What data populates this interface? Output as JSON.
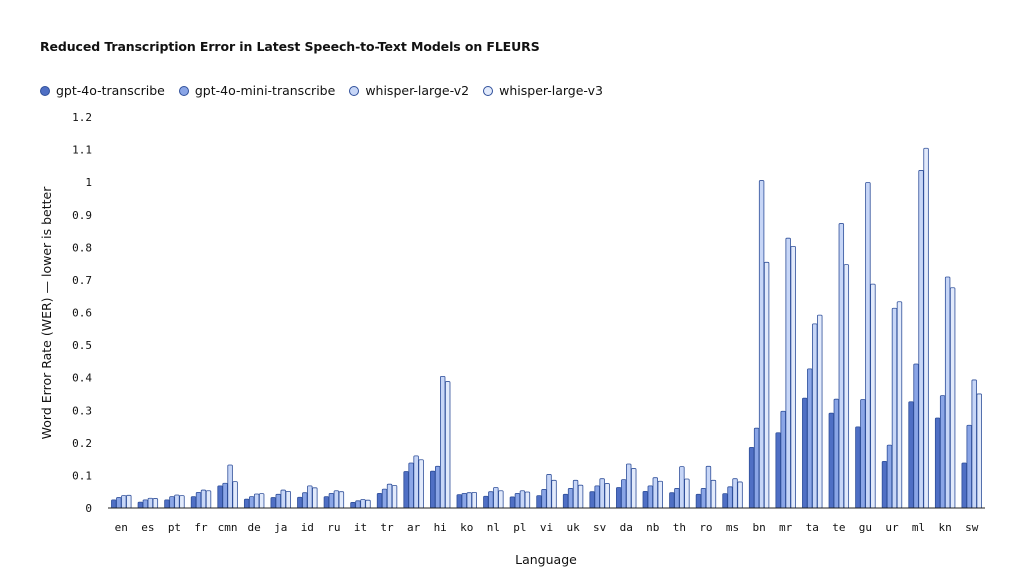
{
  "chart_data": {
    "type": "bar",
    "title": "Reduced Transcription Error in Latest Speech-to-Text Models on FLEURS",
    "xlabel": "Language",
    "ylabel": "Word Error Rate (WER) — lower is better",
    "ylim": [
      0,
      1.2
    ],
    "yticks": [
      "0",
      "0.1",
      "0.2",
      "0.3",
      "0.4",
      "0.5",
      "0.6",
      "0.7",
      "0.8",
      "0.9",
      "1",
      "1.1",
      "1.2"
    ],
    "legend_position": "top-left",
    "grid": false,
    "categories": [
      "en",
      "es",
      "pt",
      "fr",
      "cmn",
      "de",
      "ja",
      "id",
      "ru",
      "it",
      "tr",
      "ar",
      "hi",
      "ko",
      "nl",
      "pl",
      "vi",
      "uk",
      "sv",
      "da",
      "nb",
      "th",
      "ro",
      "ms",
      "bn",
      "mr",
      "ta",
      "te",
      "gu",
      "ur",
      "ml",
      "kn",
      "sw"
    ],
    "series": [
      {
        "name": "gpt-4o-transcribe",
        "color": "#4f6fc4",
        "values": [
          0.025,
          0.018,
          0.025,
          0.035,
          0.068,
          0.027,
          0.032,
          0.033,
          0.035,
          0.017,
          0.045,
          0.112,
          0.113,
          0.041,
          0.036,
          0.034,
          0.038,
          0.042,
          0.05,
          0.063,
          0.051,
          0.047,
          0.042,
          0.044,
          0.186,
          0.231,
          0.337,
          0.291,
          0.249,
          0.143,
          0.326,
          0.276,
          0.138
        ]
      },
      {
        "name": "gpt-4o-mini-transcribe",
        "color": "#8aa5e6",
        "values": [
          0.032,
          0.025,
          0.035,
          0.048,
          0.076,
          0.035,
          0.042,
          0.047,
          0.045,
          0.022,
          0.058,
          0.138,
          0.128,
          0.045,
          0.05,
          0.045,
          0.057,
          0.06,
          0.068,
          0.087,
          0.068,
          0.06,
          0.06,
          0.065,
          0.245,
          0.297,
          0.427,
          0.334,
          0.333,
          0.193,
          0.442,
          0.345,
          0.254
        ]
      },
      {
        "name": "whisper-large-v2",
        "color": "#c7d6f7",
        "values": [
          0.038,
          0.03,
          0.04,
          0.055,
          0.132,
          0.043,
          0.055,
          0.068,
          0.053,
          0.026,
          0.073,
          0.16,
          0.404,
          0.047,
          0.063,
          0.053,
          0.103,
          0.085,
          0.09,
          0.135,
          0.093,
          0.127,
          0.128,
          0.09,
          1.005,
          0.828,
          0.565,
          0.873,
          0.999,
          0.613,
          1.036,
          0.709,
          0.393
        ]
      },
      {
        "name": "whisper-large-v3",
        "color": "#e2eafb",
        "values": [
          0.039,
          0.029,
          0.038,
          0.053,
          0.081,
          0.044,
          0.051,
          0.062,
          0.05,
          0.024,
          0.069,
          0.148,
          0.388,
          0.048,
          0.053,
          0.049,
          0.085,
          0.07,
          0.075,
          0.121,
          0.082,
          0.089,
          0.085,
          0.08,
          0.754,
          0.803,
          0.592,
          0.747,
          0.687,
          0.633,
          1.104,
          0.676,
          0.35
        ]
      }
    ]
  }
}
